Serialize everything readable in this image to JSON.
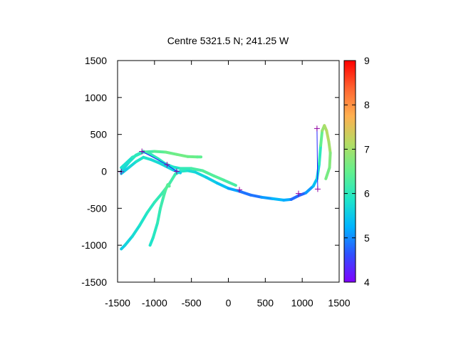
{
  "chart_data": {
    "type": "line",
    "title": "Centre 5321.5 N; 241.25  W",
    "xlabel": "",
    "ylabel": "",
    "xlim": [
      -1500,
      1500
    ],
    "ylim": [
      -1500,
      1500
    ],
    "xticks": [
      -1500,
      -1000,
      -500,
      0,
      500,
      1000,
      1500
    ],
    "yticks": [
      -1500,
      -1000,
      -500,
      0,
      500,
      1000,
      1500
    ],
    "xtick_labels": [
      "-1500",
      "-1000",
      "-500",
      "0",
      "500",
      "1000",
      "1500"
    ],
    "ytick_labels": [
      "-1500",
      "-1000",
      "-500",
      "0",
      "500",
      "1000",
      "1500"
    ],
    "grid": false,
    "colorbar": {
      "range": [
        4,
        9
      ],
      "ticks": [
        4,
        5,
        6,
        7,
        8,
        9
      ],
      "tick_labels": [
        "4",
        "5",
        "6",
        "7",
        "8",
        "9"
      ],
      "colormap": "rainbow",
      "stops": [
        "#8000ff",
        "#3050ff",
        "#00b4ff",
        "#20e6c8",
        "#64f08c",
        "#b4dc64",
        "#ffb050",
        "#ff6430",
        "#ff0000"
      ]
    },
    "series": [
      {
        "points": [
          [
            -1450,
            -1050,
            5.5
          ],
          [
            -1400,
            -1000,
            5.6
          ],
          [
            -1300,
            -880,
            5.7
          ],
          [
            -1200,
            -730,
            5.8
          ],
          [
            -1100,
            -560,
            5.9
          ],
          [
            -1000,
            -420,
            6.0
          ],
          [
            -900,
            -300,
            6.1
          ],
          [
            -800,
            -170,
            6.2
          ],
          [
            -720,
            -40,
            6.2
          ],
          [
            -650,
            0,
            6.0
          ],
          [
            -550,
            10,
            5.8
          ],
          [
            -450,
            -10,
            5.7
          ],
          [
            -300,
            -80,
            5.6
          ],
          [
            -150,
            -160,
            5.5
          ],
          [
            0,
            -230,
            5.3
          ],
          [
            150,
            -270,
            5.0
          ],
          [
            300,
            -320,
            4.7
          ],
          [
            450,
            -350,
            5.0
          ],
          [
            600,
            -370,
            5.2
          ],
          [
            750,
            -390,
            5.4
          ],
          [
            850,
            -380,
            5.0
          ],
          [
            950,
            -330,
            4.6
          ],
          [
            1050,
            -290,
            4.9
          ],
          [
            1150,
            -200,
            5.3
          ],
          [
            1200,
            -100,
            5.5
          ],
          [
            1230,
            100,
            5.8
          ],
          [
            1250,
            350,
            6.2
          ],
          [
            1270,
            550,
            6.8
          ],
          [
            1300,
            620,
            7.0
          ],
          [
            1330,
            550,
            7.1
          ],
          [
            1360,
            400,
            7.2
          ],
          [
            1380,
            250,
            6.8
          ],
          [
            1370,
            50,
            6.7
          ],
          [
            1320,
            -100,
            6.6
          ]
        ]
      },
      {
        "points": [
          [
            -1450,
            0,
            5.6
          ],
          [
            -1350,
            120,
            5.8
          ],
          [
            -1250,
            220,
            6.0
          ],
          [
            -1150,
            270,
            6.1
          ],
          [
            -1050,
            230,
            6.0
          ],
          [
            -950,
            170,
            6.0
          ],
          [
            -850,
            100,
            5.9
          ],
          [
            -750,
            60,
            5.8
          ],
          [
            -650,
            40,
            5.9
          ],
          [
            -500,
            40,
            6.2
          ],
          [
            -350,
            10,
            6.3
          ],
          [
            -200,
            -60,
            6.4
          ],
          [
            -60,
            -120,
            6.3
          ],
          [
            100,
            -190,
            6.2
          ]
        ]
      },
      {
        "points": [
          [
            -1450,
            50,
            5.7
          ],
          [
            -1300,
            190,
            5.9
          ],
          [
            -1150,
            260,
            6.1
          ],
          [
            -1000,
            270,
            6.3
          ],
          [
            -850,
            260,
            6.5
          ],
          [
            -700,
            230,
            6.6
          ],
          [
            -550,
            200,
            6.6
          ],
          [
            -420,
            195,
            6.5
          ],
          [
            -370,
            195,
            6.4
          ]
        ]
      },
      {
        "points": [
          [
            -1060,
            -1000,
            5.8
          ],
          [
            -1020,
            -900,
            5.9
          ],
          [
            -960,
            -700,
            6.0
          ],
          [
            -920,
            -500,
            6.1
          ],
          [
            -880,
            -350,
            6.2
          ],
          [
            -850,
            -250,
            6.3
          ],
          [
            -820,
            -180,
            6.4
          ],
          [
            -800,
            -200,
            6.4
          ]
        ]
      },
      {
        "points": [
          [
            -1450,
            -30,
            5.5
          ],
          [
            -1350,
            50,
            5.6
          ],
          [
            -1250,
            130,
            5.8
          ],
          [
            -1150,
            190,
            5.9
          ],
          [
            -1050,
            160,
            5.8
          ],
          [
            -950,
            120,
            5.7
          ],
          [
            -850,
            70,
            5.7
          ],
          [
            -750,
            20,
            5.6
          ],
          [
            -650,
            -20,
            5.5
          ]
        ]
      }
    ],
    "markers": [
      [
        -1170,
        270
      ],
      [
        -830,
        90
      ],
      [
        -700,
        0
      ],
      [
        -1450,
        -5
      ],
      [
        150,
        -250
      ],
      [
        950,
        -300
      ],
      [
        1200,
        580
      ],
      [
        1210,
        -240
      ]
    ],
    "nav_lines": [
      [
        [
          -1170,
          270
        ],
        [
          -830,
          90
        ],
        [
          -700,
          0
        ]
      ],
      [
        [
          1210,
          -240
        ],
        [
          1200,
          580
        ]
      ]
    ],
    "nav_line_color": "#2020ff",
    "marker_color": "#9000a0"
  }
}
